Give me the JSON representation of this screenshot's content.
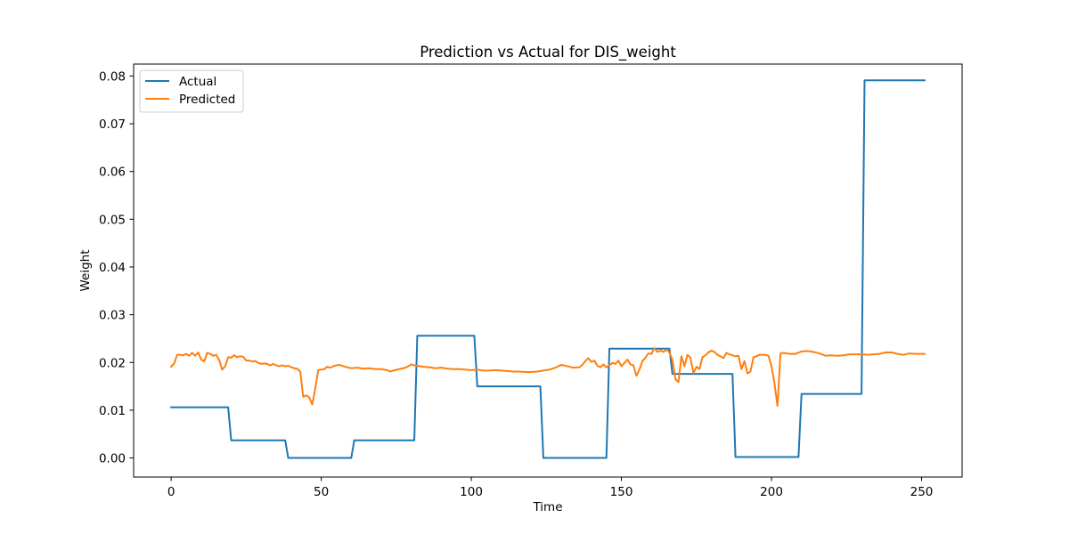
{
  "chart_data": {
    "type": "line",
    "title": "Prediction vs Actual for DIS_weight",
    "xlabel": "Time",
    "ylabel": "Weight",
    "xlim": [
      -12.5,
      263.5
    ],
    "ylim": [
      -0.004,
      0.0825
    ],
    "xticks": [
      0,
      50,
      100,
      150,
      200,
      250
    ],
    "yticks": [
      0.0,
      0.01,
      0.02,
      0.03,
      0.04,
      0.05,
      0.06,
      0.07,
      0.08
    ],
    "ytick_labels": [
      "0.00",
      "0.01",
      "0.02",
      "0.03",
      "0.04",
      "0.05",
      "0.06",
      "0.07",
      "0.08"
    ],
    "grid": false,
    "legend_position": "upper left",
    "series": [
      {
        "name": "Actual",
        "color": "#1f77b4",
        "points": [
          [
            0,
            0.0106
          ],
          [
            19,
            0.0106
          ],
          [
            20,
            0.0037
          ],
          [
            38,
            0.0037
          ],
          [
            39,
            0.0
          ],
          [
            60,
            0.0
          ],
          [
            61,
            0.0037
          ],
          [
            81,
            0.0037
          ],
          [
            82,
            0.0256
          ],
          [
            101,
            0.0256
          ],
          [
            102,
            0.015
          ],
          [
            123,
            0.015
          ],
          [
            124,
            0.0
          ],
          [
            145,
            0.0
          ],
          [
            146,
            0.0229
          ],
          [
            166,
            0.0229
          ],
          [
            167,
            0.0176
          ],
          [
            187,
            0.0176
          ],
          [
            188,
            0.0002
          ],
          [
            209,
            0.0002
          ],
          [
            210,
            0.0134
          ],
          [
            230,
            0.0134
          ],
          [
            231,
            0.0791
          ],
          [
            251,
            0.0791
          ]
        ]
      },
      {
        "name": "Predicted",
        "color": "#ff7f0e",
        "points": [
          [
            0,
            0.0191
          ],
          [
            1,
            0.0198
          ],
          [
            2,
            0.0216
          ],
          [
            3,
            0.0216
          ],
          [
            4,
            0.0215
          ],
          [
            5,
            0.0218
          ],
          [
            6,
            0.0214
          ],
          [
            7,
            0.022
          ],
          [
            8,
            0.0214
          ],
          [
            9,
            0.0221
          ],
          [
            10,
            0.0206
          ],
          [
            11,
            0.0202
          ],
          [
            12,
            0.022
          ],
          [
            13,
            0.0218
          ],
          [
            14,
            0.0214
          ],
          [
            15,
            0.0216
          ],
          [
            16,
            0.0205
          ],
          [
            17,
            0.0185
          ],
          [
            18,
            0.0192
          ],
          [
            19,
            0.0211
          ],
          [
            20,
            0.021
          ],
          [
            21,
            0.0215
          ],
          [
            22,
            0.0211
          ],
          [
            23,
            0.0213
          ],
          [
            24,
            0.0212
          ],
          [
            25,
            0.0204
          ],
          [
            26,
            0.0204
          ],
          [
            27,
            0.0202
          ],
          [
            28,
            0.0203
          ],
          [
            29,
            0.0199
          ],
          [
            30,
            0.0197
          ],
          [
            31,
            0.0198
          ],
          [
            32,
            0.0197
          ],
          [
            33,
            0.0194
          ],
          [
            34,
            0.0197
          ],
          [
            35,
            0.0194
          ],
          [
            36,
            0.0192
          ],
          [
            37,
            0.0194
          ],
          [
            38,
            0.0192
          ],
          [
            39,
            0.0193
          ],
          [
            40,
            0.019
          ],
          [
            41,
            0.0188
          ],
          [
            42,
            0.0187
          ],
          [
            43,
            0.0181
          ],
          [
            44,
            0.0128
          ],
          [
            45,
            0.0131
          ],
          [
            46,
            0.0127
          ],
          [
            47,
            0.0112
          ],
          [
            48,
            0.0145
          ],
          [
            49,
            0.0184
          ],
          [
            50,
            0.0185
          ],
          [
            51,
            0.0186
          ],
          [
            52,
            0.0191
          ],
          [
            53,
            0.0189
          ],
          [
            54,
            0.0192
          ],
          [
            55,
            0.0194
          ],
          [
            56,
            0.0195
          ],
          [
            57,
            0.0193
          ],
          [
            58,
            0.0191
          ],
          [
            59,
            0.0189
          ],
          [
            60,
            0.0188
          ],
          [
            62,
            0.0189
          ],
          [
            64,
            0.0187
          ],
          [
            66,
            0.0188
          ],
          [
            68,
            0.0186
          ],
          [
            70,
            0.0186
          ],
          [
            72,
            0.0184
          ],
          [
            73,
            0.0181
          ],
          [
            74,
            0.0183
          ],
          [
            76,
            0.0186
          ],
          [
            78,
            0.0189
          ],
          [
            79,
            0.0192
          ],
          [
            80,
            0.0196
          ],
          [
            81,
            0.0194
          ],
          [
            82,
            0.0193
          ],
          [
            84,
            0.0191
          ],
          [
            86,
            0.019
          ],
          [
            88,
            0.0188
          ],
          [
            90,
            0.0189
          ],
          [
            92,
            0.0187
          ],
          [
            94,
            0.0186
          ],
          [
            96,
            0.0186
          ],
          [
            98,
            0.0185
          ],
          [
            100,
            0.0184
          ],
          [
            102,
            0.0185
          ],
          [
            104,
            0.0183
          ],
          [
            106,
            0.0183
          ],
          [
            108,
            0.0184
          ],
          [
            110,
            0.0183
          ],
          [
            112,
            0.0182
          ],
          [
            114,
            0.0181
          ],
          [
            116,
            0.0181
          ],
          [
            118,
            0.018
          ],
          [
            120,
            0.018
          ],
          [
            122,
            0.0181
          ],
          [
            124,
            0.0183
          ],
          [
            126,
            0.0185
          ],
          [
            128,
            0.0189
          ],
          [
            130,
            0.0195
          ],
          [
            132,
            0.0192
          ],
          [
            134,
            0.0189
          ],
          [
            136,
            0.019
          ],
          [
            137,
            0.0195
          ],
          [
            138,
            0.0203
          ],
          [
            139,
            0.0209
          ],
          [
            140,
            0.0201
          ],
          [
            141,
            0.0204
          ],
          [
            142,
            0.0193
          ],
          [
            143,
            0.019
          ],
          [
            144,
            0.0196
          ],
          [
            145,
            0.019
          ],
          [
            146,
            0.0194
          ],
          [
            147,
            0.0199
          ],
          [
            148,
            0.0197
          ],
          [
            149,
            0.0204
          ],
          [
            150,
            0.0192
          ],
          [
            151,
            0.0199
          ],
          [
            152,
            0.0206
          ],
          [
            153,
            0.0196
          ],
          [
            154,
            0.0194
          ],
          [
            155,
            0.0172
          ],
          [
            156,
            0.0185
          ],
          [
            157,
            0.0203
          ],
          [
            158,
            0.021
          ],
          [
            159,
            0.0219
          ],
          [
            160,
            0.0218
          ],
          [
            161,
            0.023
          ],
          [
            162,
            0.0222
          ],
          [
            163,
            0.0225
          ],
          [
            164,
            0.0222
          ],
          [
            165,
            0.0227
          ],
          [
            166,
            0.0221
          ],
          [
            167,
            0.0205
          ],
          [
            168,
            0.0165
          ],
          [
            169,
            0.0159
          ],
          [
            170,
            0.0213
          ],
          [
            171,
            0.0192
          ],
          [
            172,
            0.0216
          ],
          [
            173,
            0.021
          ],
          [
            174,
            0.0178
          ],
          [
            175,
            0.0191
          ],
          [
            176,
            0.0186
          ],
          [
            177,
            0.0211
          ],
          [
            178,
            0.0215
          ],
          [
            179,
            0.0221
          ],
          [
            180,
            0.0225
          ],
          [
            181,
            0.0222
          ],
          [
            182,
            0.0216
          ],
          [
            183,
            0.0213
          ],
          [
            184,
            0.0209
          ],
          [
            185,
            0.022
          ],
          [
            186,
            0.0217
          ],
          [
            187,
            0.0215
          ],
          [
            188,
            0.0213
          ],
          [
            189,
            0.0214
          ],
          [
            190,
            0.0186
          ],
          [
            191,
            0.0203
          ],
          [
            192,
            0.0177
          ],
          [
            193,
            0.0181
          ],
          [
            194,
            0.0211
          ],
          [
            195,
            0.0213
          ],
          [
            196,
            0.0216
          ],
          [
            197,
            0.0216
          ],
          [
            198,
            0.0216
          ],
          [
            199,
            0.0214
          ],
          [
            200,
            0.0192
          ],
          [
            201,
            0.0156
          ],
          [
            202,
            0.0109
          ],
          [
            203,
            0.0219
          ],
          [
            204,
            0.022
          ],
          [
            206,
            0.0218
          ],
          [
            208,
            0.0218
          ],
          [
            210,
            0.0223
          ],
          [
            212,
            0.0224
          ],
          [
            214,
            0.0222
          ],
          [
            216,
            0.0219
          ],
          [
            218,
            0.0214
          ],
          [
            220,
            0.0215
          ],
          [
            222,
            0.0214
          ],
          [
            224,
            0.0215
          ],
          [
            226,
            0.0217
          ],
          [
            228,
            0.0217
          ],
          [
            230,
            0.0217
          ],
          [
            232,
            0.0216
          ],
          [
            234,
            0.0217
          ],
          [
            236,
            0.0218
          ],
          [
            238,
            0.0221
          ],
          [
            240,
            0.0221
          ],
          [
            242,
            0.0218
          ],
          [
            244,
            0.0216
          ],
          [
            246,
            0.0219
          ],
          [
            248,
            0.0218
          ],
          [
            250,
            0.0218
          ],
          [
            251,
            0.0218
          ]
        ]
      }
    ]
  }
}
